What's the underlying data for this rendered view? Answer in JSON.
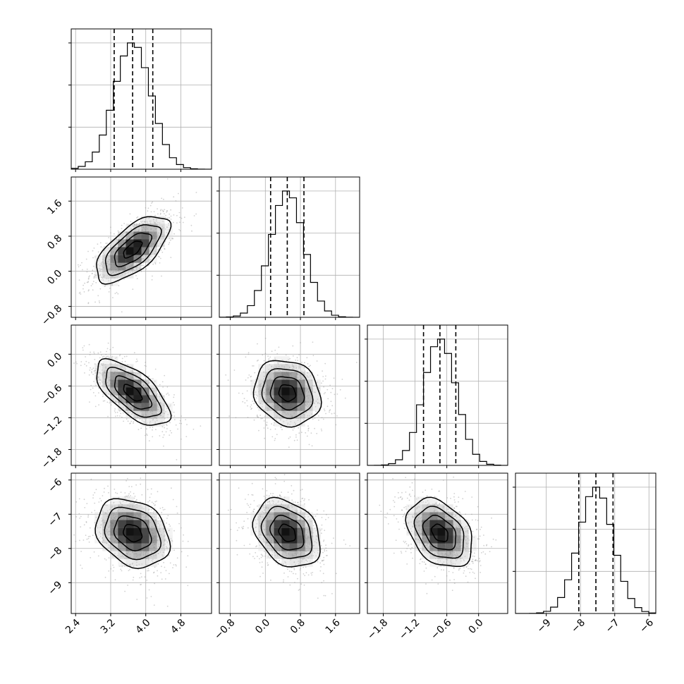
{
  "chart_data": {
    "type": "corner",
    "parameters": 4,
    "grid": true,
    "quantiles": [
      0.16,
      0.5,
      0.84
    ],
    "marginals": [
      {
        "range": [
          2.3,
          5.5
        ],
        "ticks": [
          2.4,
          3.2,
          4.0,
          4.8
        ],
        "mean": 3.7,
        "sd": 0.42,
        "quantile_values": [
          3.28,
          3.7,
          4.16
        ],
        "show_x_ticklabels": true
      },
      {
        "range": [
          -1.05,
          2.15
        ],
        "ticks": [
          -0.8,
          0.0,
          0.8,
          1.6
        ],
        "mean": 0.5,
        "sd": 0.38,
        "quantile_values": [
          0.12,
          0.5,
          0.88
        ],
        "show_x_ticklabels": true
      },
      {
        "range": [
          -2.1,
          0.55
        ],
        "ticks": [
          -1.8,
          -1.2,
          -0.6,
          0.0
        ],
        "mean": -0.73,
        "sd": 0.31,
        "quantile_values": [
          -1.04,
          -0.73,
          -0.43
        ],
        "show_x_ticklabels": true
      },
      {
        "range": [
          -9.9,
          -5.8
        ],
        "ticks": [
          -9,
          -8,
          -7,
          -6
        ],
        "mean": -7.55,
        "sd": 0.5,
        "quantile_values": [
          -8.05,
          -7.55,
          -7.05
        ],
        "show_x_ticklabels": true
      }
    ],
    "x_tick_labels": [
      [
        "2.4",
        "3.2",
        "4.0",
        "4.8"
      ],
      [
        "−0.8",
        "0.0",
        "0.8",
        "1.6"
      ],
      [
        "−1.8",
        "−1.2",
        "−0.6",
        "0.0"
      ],
      [
        "−9",
        "−8",
        "−7",
        "−6"
      ]
    ],
    "y_tick_labels": [
      [],
      [
        "−0.8",
        "0.0",
        "0.8",
        "1.6"
      ],
      [
        "−1.8",
        "−1.2",
        "−0.6",
        "0.0"
      ],
      [
        "−9",
        "−8",
        "−7",
        "−6"
      ]
    ],
    "correlations": [
      [
        1.0,
        0.65,
        -0.65,
        -0.25
      ],
      [
        0.65,
        1.0,
        -0.15,
        -0.3
      ],
      [
        -0.65,
        -0.15,
        1.0,
        -0.35
      ],
      [
        -0.25,
        -0.3,
        -0.35,
        1.0
      ]
    ],
    "histogram_bins": 20,
    "contour_levels": [
      0.5,
      1.0,
      1.5,
      2.0
    ],
    "scatter_points_per_panel": 900
  }
}
